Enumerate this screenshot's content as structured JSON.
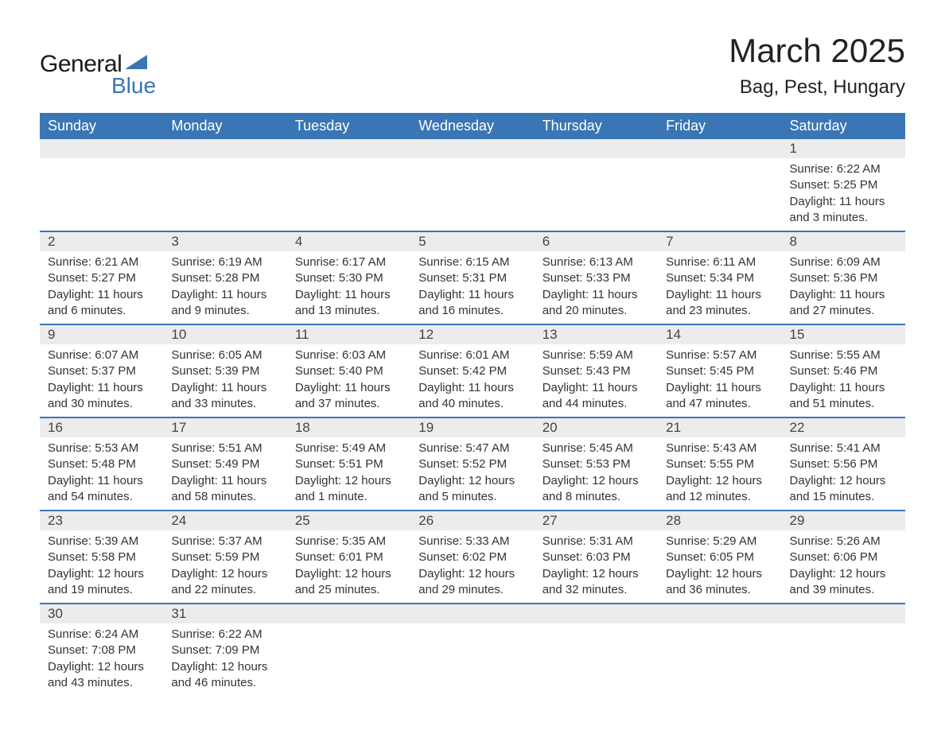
{
  "logo": {
    "general": "General",
    "blue": "Blue",
    "arrow_color": "#3a76b5"
  },
  "title": "March 2025",
  "location": "Bag, Pest, Hungary",
  "colors": {
    "header_bg": "#3a76b5",
    "header_text": "#ffffff",
    "daynum_bg": "#ececec",
    "row_divider": "#3a76b5",
    "body_text": "#333333",
    "page_bg": "#ffffff"
  },
  "typography": {
    "title_fontsize": 42,
    "location_fontsize": 24,
    "weekday_fontsize": 18,
    "daynum_fontsize": 17,
    "body_fontsize": 15
  },
  "weekdays": [
    "Sunday",
    "Monday",
    "Tuesday",
    "Wednesday",
    "Thursday",
    "Friday",
    "Saturday"
  ],
  "weeks": [
    [
      null,
      null,
      null,
      null,
      null,
      null,
      {
        "n": "1",
        "sunrise": "Sunrise: 6:22 AM",
        "sunset": "Sunset: 5:25 PM",
        "dl1": "Daylight: 11 hours",
        "dl2": "and 3 minutes."
      }
    ],
    [
      {
        "n": "2",
        "sunrise": "Sunrise: 6:21 AM",
        "sunset": "Sunset: 5:27 PM",
        "dl1": "Daylight: 11 hours",
        "dl2": "and 6 minutes."
      },
      {
        "n": "3",
        "sunrise": "Sunrise: 6:19 AM",
        "sunset": "Sunset: 5:28 PM",
        "dl1": "Daylight: 11 hours",
        "dl2": "and 9 minutes."
      },
      {
        "n": "4",
        "sunrise": "Sunrise: 6:17 AM",
        "sunset": "Sunset: 5:30 PM",
        "dl1": "Daylight: 11 hours",
        "dl2": "and 13 minutes."
      },
      {
        "n": "5",
        "sunrise": "Sunrise: 6:15 AM",
        "sunset": "Sunset: 5:31 PM",
        "dl1": "Daylight: 11 hours",
        "dl2": "and 16 minutes."
      },
      {
        "n": "6",
        "sunrise": "Sunrise: 6:13 AM",
        "sunset": "Sunset: 5:33 PM",
        "dl1": "Daylight: 11 hours",
        "dl2": "and 20 minutes."
      },
      {
        "n": "7",
        "sunrise": "Sunrise: 6:11 AM",
        "sunset": "Sunset: 5:34 PM",
        "dl1": "Daylight: 11 hours",
        "dl2": "and 23 minutes."
      },
      {
        "n": "8",
        "sunrise": "Sunrise: 6:09 AM",
        "sunset": "Sunset: 5:36 PM",
        "dl1": "Daylight: 11 hours",
        "dl2": "and 27 minutes."
      }
    ],
    [
      {
        "n": "9",
        "sunrise": "Sunrise: 6:07 AM",
        "sunset": "Sunset: 5:37 PM",
        "dl1": "Daylight: 11 hours",
        "dl2": "and 30 minutes."
      },
      {
        "n": "10",
        "sunrise": "Sunrise: 6:05 AM",
        "sunset": "Sunset: 5:39 PM",
        "dl1": "Daylight: 11 hours",
        "dl2": "and 33 minutes."
      },
      {
        "n": "11",
        "sunrise": "Sunrise: 6:03 AM",
        "sunset": "Sunset: 5:40 PM",
        "dl1": "Daylight: 11 hours",
        "dl2": "and 37 minutes."
      },
      {
        "n": "12",
        "sunrise": "Sunrise: 6:01 AM",
        "sunset": "Sunset: 5:42 PM",
        "dl1": "Daylight: 11 hours",
        "dl2": "and 40 minutes."
      },
      {
        "n": "13",
        "sunrise": "Sunrise: 5:59 AM",
        "sunset": "Sunset: 5:43 PM",
        "dl1": "Daylight: 11 hours",
        "dl2": "and 44 minutes."
      },
      {
        "n": "14",
        "sunrise": "Sunrise: 5:57 AM",
        "sunset": "Sunset: 5:45 PM",
        "dl1": "Daylight: 11 hours",
        "dl2": "and 47 minutes."
      },
      {
        "n": "15",
        "sunrise": "Sunrise: 5:55 AM",
        "sunset": "Sunset: 5:46 PM",
        "dl1": "Daylight: 11 hours",
        "dl2": "and 51 minutes."
      }
    ],
    [
      {
        "n": "16",
        "sunrise": "Sunrise: 5:53 AM",
        "sunset": "Sunset: 5:48 PM",
        "dl1": "Daylight: 11 hours",
        "dl2": "and 54 minutes."
      },
      {
        "n": "17",
        "sunrise": "Sunrise: 5:51 AM",
        "sunset": "Sunset: 5:49 PM",
        "dl1": "Daylight: 11 hours",
        "dl2": "and 58 minutes."
      },
      {
        "n": "18",
        "sunrise": "Sunrise: 5:49 AM",
        "sunset": "Sunset: 5:51 PM",
        "dl1": "Daylight: 12 hours",
        "dl2": "and 1 minute."
      },
      {
        "n": "19",
        "sunrise": "Sunrise: 5:47 AM",
        "sunset": "Sunset: 5:52 PM",
        "dl1": "Daylight: 12 hours",
        "dl2": "and 5 minutes."
      },
      {
        "n": "20",
        "sunrise": "Sunrise: 5:45 AM",
        "sunset": "Sunset: 5:53 PM",
        "dl1": "Daylight: 12 hours",
        "dl2": "and 8 minutes."
      },
      {
        "n": "21",
        "sunrise": "Sunrise: 5:43 AM",
        "sunset": "Sunset: 5:55 PM",
        "dl1": "Daylight: 12 hours",
        "dl2": "and 12 minutes."
      },
      {
        "n": "22",
        "sunrise": "Sunrise: 5:41 AM",
        "sunset": "Sunset: 5:56 PM",
        "dl1": "Daylight: 12 hours",
        "dl2": "and 15 minutes."
      }
    ],
    [
      {
        "n": "23",
        "sunrise": "Sunrise: 5:39 AM",
        "sunset": "Sunset: 5:58 PM",
        "dl1": "Daylight: 12 hours",
        "dl2": "and 19 minutes."
      },
      {
        "n": "24",
        "sunrise": "Sunrise: 5:37 AM",
        "sunset": "Sunset: 5:59 PM",
        "dl1": "Daylight: 12 hours",
        "dl2": "and 22 minutes."
      },
      {
        "n": "25",
        "sunrise": "Sunrise: 5:35 AM",
        "sunset": "Sunset: 6:01 PM",
        "dl1": "Daylight: 12 hours",
        "dl2": "and 25 minutes."
      },
      {
        "n": "26",
        "sunrise": "Sunrise: 5:33 AM",
        "sunset": "Sunset: 6:02 PM",
        "dl1": "Daylight: 12 hours",
        "dl2": "and 29 minutes."
      },
      {
        "n": "27",
        "sunrise": "Sunrise: 5:31 AM",
        "sunset": "Sunset: 6:03 PM",
        "dl1": "Daylight: 12 hours",
        "dl2": "and 32 minutes."
      },
      {
        "n": "28",
        "sunrise": "Sunrise: 5:29 AM",
        "sunset": "Sunset: 6:05 PM",
        "dl1": "Daylight: 12 hours",
        "dl2": "and 36 minutes."
      },
      {
        "n": "29",
        "sunrise": "Sunrise: 5:26 AM",
        "sunset": "Sunset: 6:06 PM",
        "dl1": "Daylight: 12 hours",
        "dl2": "and 39 minutes."
      }
    ],
    [
      {
        "n": "30",
        "sunrise": "Sunrise: 6:24 AM",
        "sunset": "Sunset: 7:08 PM",
        "dl1": "Daylight: 12 hours",
        "dl2": "and 43 minutes."
      },
      {
        "n": "31",
        "sunrise": "Sunrise: 6:22 AM",
        "sunset": "Sunset: 7:09 PM",
        "dl1": "Daylight: 12 hours",
        "dl2": "and 46 minutes."
      },
      null,
      null,
      null,
      null,
      null
    ]
  ]
}
